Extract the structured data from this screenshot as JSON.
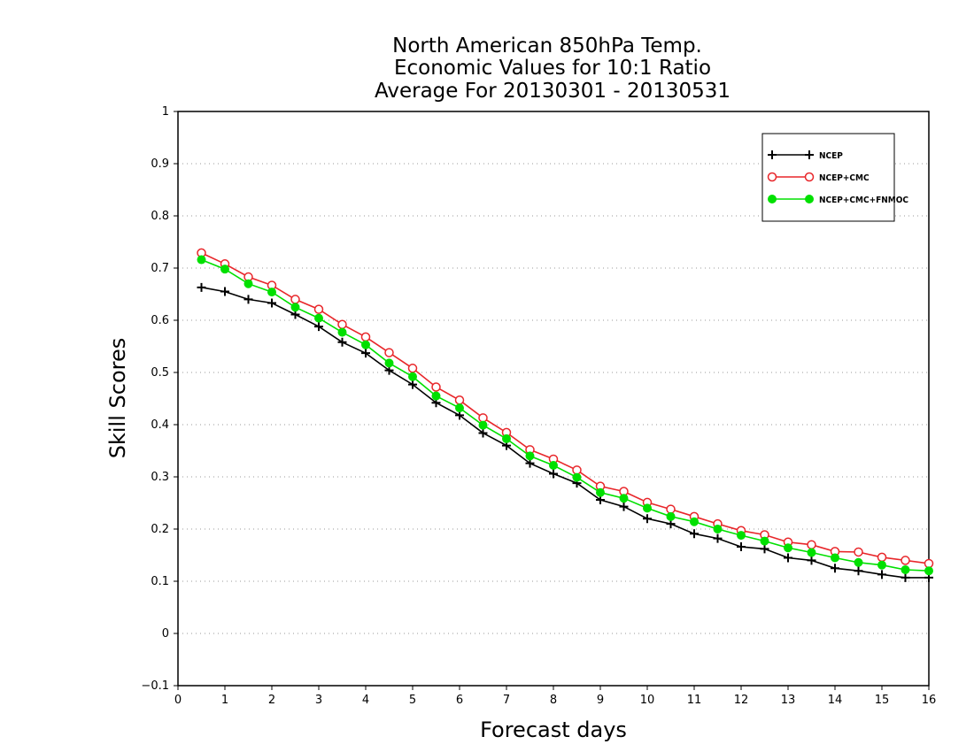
{
  "chart_data": {
    "type": "line",
    "title": [
      "North American 850hPa Temp.",
      "Economic Values for 10:1 Ratio",
      "Average For 20130301 - 20130531"
    ],
    "xlabel": "Forecast days",
    "ylabel": "Skill Scores",
    "xlim": [
      0,
      16
    ],
    "ylim": [
      -0.1,
      1
    ],
    "xticks": [
      "0",
      "1",
      "2",
      "3",
      "4",
      "5",
      "6",
      "7",
      "8",
      "9",
      "10",
      "11",
      "12",
      "13",
      "14",
      "15",
      "16"
    ],
    "yticks": [
      "−0.1",
      "0",
      "0.1",
      "0.2",
      "0.3",
      "0.4",
      "0.5",
      "0.6",
      "0.7",
      "0.8",
      "0.9",
      "1"
    ],
    "grid": "horizontal dotted",
    "legend_position": "top-right",
    "x": [
      0.5,
      1,
      1.5,
      2,
      2.5,
      3,
      3.5,
      4,
      4.5,
      5,
      5.5,
      6,
      6.5,
      7,
      7.5,
      8,
      8.5,
      9,
      9.5,
      10,
      10.5,
      11,
      11.5,
      12,
      12.5,
      13,
      13.5,
      14,
      14.5,
      15,
      15.5,
      16
    ],
    "series": [
      {
        "name": "NCEP",
        "color": "#000000",
        "marker": "plus",
        "values": [
          0.663,
          0.655,
          0.64,
          0.633,
          0.611,
          0.588,
          0.558,
          0.537,
          0.504,
          0.477,
          0.442,
          0.418,
          0.384,
          0.36,
          0.326,
          0.306,
          0.288,
          0.256,
          0.243,
          0.22,
          0.21,
          0.191,
          0.182,
          0.166,
          0.162,
          0.145,
          0.14,
          0.125,
          0.12,
          0.113,
          0.107,
          0.107
        ]
      },
      {
        "name": "NCEP+CMC",
        "color": "#e8262a",
        "marker": "open-circle",
        "values": [
          0.729,
          0.708,
          0.683,
          0.667,
          0.64,
          0.621,
          0.592,
          0.568,
          0.538,
          0.508,
          0.472,
          0.447,
          0.413,
          0.385,
          0.352,
          0.334,
          0.313,
          0.282,
          0.272,
          0.251,
          0.238,
          0.224,
          0.21,
          0.197,
          0.189,
          0.175,
          0.17,
          0.157,
          0.156,
          0.146,
          0.14,
          0.134
        ]
      },
      {
        "name": "NCEP+CMC+FNMOC",
        "color": "#00e000",
        "marker": "filled-circle",
        "values": [
          0.716,
          0.698,
          0.67,
          0.654,
          0.625,
          0.604,
          0.577,
          0.553,
          0.518,
          0.492,
          0.455,
          0.432,
          0.399,
          0.373,
          0.34,
          0.322,
          0.299,
          0.27,
          0.259,
          0.24,
          0.224,
          0.214,
          0.2,
          0.188,
          0.177,
          0.164,
          0.155,
          0.145,
          0.136,
          0.131,
          0.122,
          0.12
        ]
      }
    ]
  }
}
